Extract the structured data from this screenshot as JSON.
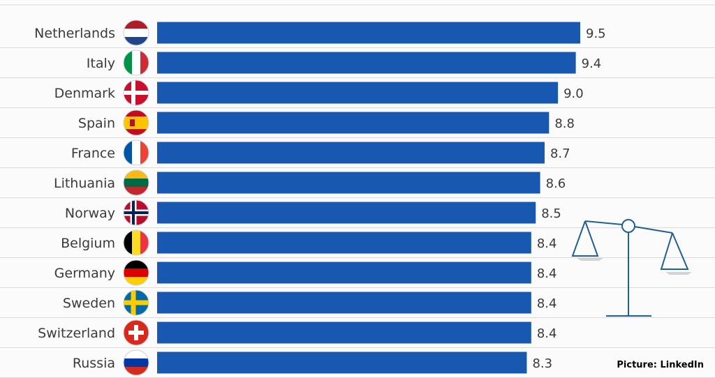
{
  "credit": "Picture: LinkedIn",
  "colors": {
    "bar": "#1858b0",
    "grid": "#d9d9d9",
    "scale": "#1f5f96"
  },
  "chart_data": {
    "type": "bar",
    "orientation": "horizontal",
    "categories": [
      "Netherlands",
      "Italy",
      "Denmark",
      "Spain",
      "France",
      "Lithuania",
      "Norway",
      "Belgium",
      "Germany",
      "Sweden",
      "Switzerland",
      "Russia"
    ],
    "values": [
      9.5,
      9.4,
      9.0,
      8.8,
      8.7,
      8.6,
      8.5,
      8.4,
      8.4,
      8.4,
      8.4,
      8.3
    ],
    "value_labels": [
      "9.5",
      "9.4",
      "9.0",
      "8.8",
      "8.7",
      "8.6",
      "8.5",
      "8.4",
      "8.4",
      "8.4",
      "8.4",
      "8.3"
    ],
    "flag_icons": [
      "flag-netherlands-icon",
      "flag-italy-icon",
      "flag-denmark-icon",
      "flag-spain-icon",
      "flag-france-icon",
      "flag-lithuania-icon",
      "flag-norway-icon",
      "flag-belgium-icon",
      "flag-germany-icon",
      "flag-sweden-icon",
      "flag-switzerland-icon",
      "flag-russia-icon"
    ],
    "title": "",
    "xlabel": "",
    "ylabel": "",
    "xlim": [
      0,
      9.5
    ],
    "grid": true,
    "legend": "none"
  }
}
